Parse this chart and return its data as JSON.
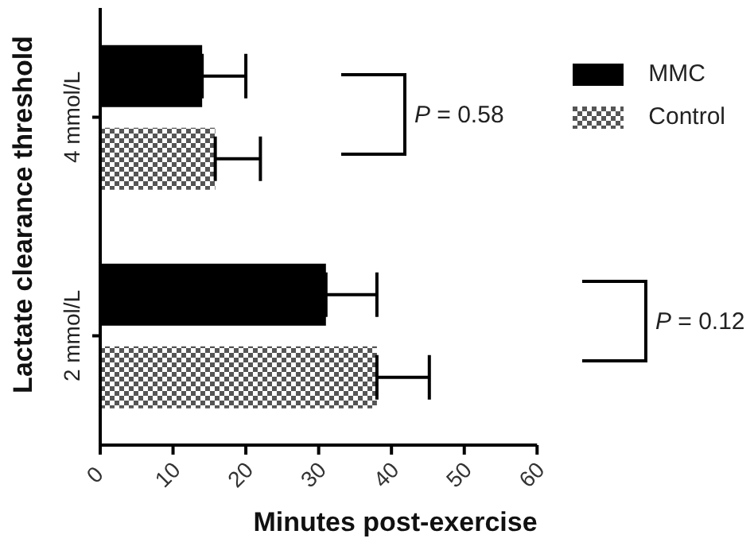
{
  "chart_data": {
    "type": "bar",
    "orientation": "horizontal",
    "xlabel": "Minutes post-exercise",
    "ylabel": "Lactate clearance threshold",
    "categories": [
      "4 mmol/L",
      "2 mmol/L"
    ],
    "series": [
      {
        "name": "MMC",
        "color": "#000000",
        "values": [
          14,
          31
        ],
        "errors": [
          [
            14,
            20
          ],
          [
            31,
            38
          ]
        ]
      },
      {
        "name": "Control",
        "color": "#555555",
        "values": [
          15.8,
          38
        ],
        "errors": [
          [
            15.8,
            22
          ],
          [
            38,
            45.2
          ]
        ]
      }
    ],
    "xlim": [
      0,
      60
    ],
    "xticks": [
      0,
      10,
      20,
      30,
      40,
      50,
      60
    ],
    "legend": "top right",
    "annotations": [
      "P = 0.58",
      "P = 0.12"
    ]
  }
}
